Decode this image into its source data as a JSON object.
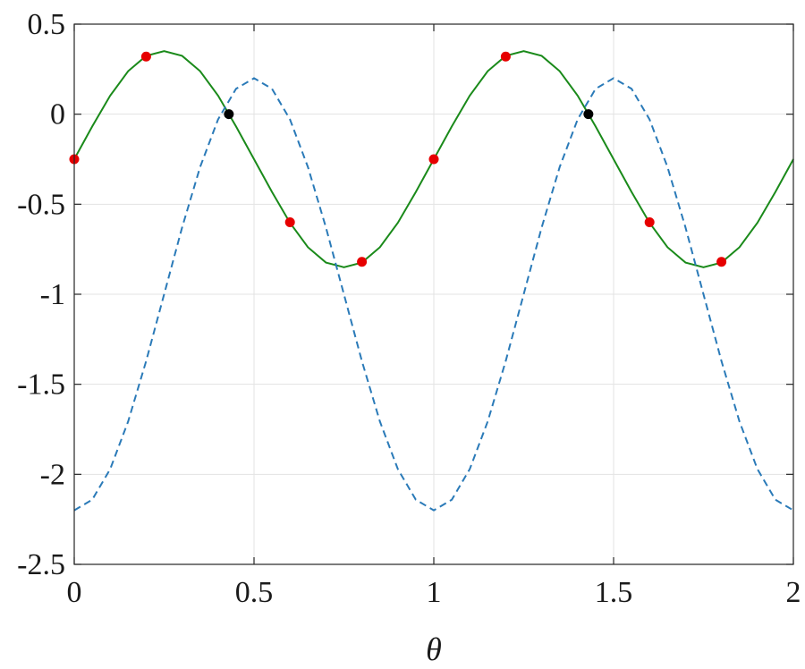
{
  "chart_data": {
    "type": "line",
    "title": "",
    "xlabel": "θ",
    "ylabel": "",
    "xlim": [
      0,
      2
    ],
    "ylim": [
      -2.5,
      0.5
    ],
    "xticks": [
      0,
      0.5,
      1,
      1.5,
      2
    ],
    "xtick_labels": [
      "0",
      "0.5",
      "1",
      "1.5",
      "2"
    ],
    "yticks": [
      0.5,
      0,
      -0.5,
      -1,
      -1.5,
      -2,
      -2.5
    ],
    "ytick_labels": [
      "0.5",
      "0",
      "-0.5",
      "-1",
      "-1.5",
      "-2",
      "-2.5"
    ],
    "grid": true,
    "series": [
      {
        "style": "solid",
        "color": "#1a8a1a",
        "x": [
          0,
          0.05,
          0.1,
          0.15,
          0.2,
          0.25,
          0.3,
          0.35,
          0.4,
          0.45,
          0.5,
          0.55,
          0.6,
          0.65,
          0.7,
          0.75,
          0.8,
          0.85,
          0.9,
          0.95,
          1.0,
          1.05,
          1.1,
          1.15,
          1.2,
          1.25,
          1.3,
          1.35,
          1.4,
          1.45,
          1.5,
          1.55,
          1.6,
          1.65,
          1.7,
          1.75,
          1.8,
          1.85,
          1.9,
          1.95,
          2.0
        ],
        "y": [
          -0.25,
          -0.068,
          0.103,
          0.239,
          0.324,
          0.35,
          0.324,
          0.239,
          0.103,
          -0.068,
          -0.25,
          -0.432,
          -0.603,
          -0.739,
          -0.824,
          -0.85,
          -0.824,
          -0.739,
          -0.603,
          -0.432,
          -0.25,
          -0.068,
          0.103,
          0.239,
          0.324,
          0.35,
          0.324,
          0.239,
          0.103,
          -0.068,
          -0.25,
          -0.432,
          -0.603,
          -0.739,
          -0.824,
          -0.85,
          -0.824,
          -0.739,
          -0.603,
          -0.432,
          -0.25
        ]
      },
      {
        "style": "dashed",
        "color": "#2a7ab8",
        "x": [
          0,
          0.05,
          0.1,
          0.15,
          0.2,
          0.25,
          0.3,
          0.35,
          0.4,
          0.45,
          0.5,
          0.55,
          0.6,
          0.65,
          0.7,
          0.75,
          0.8,
          0.85,
          0.9,
          0.95,
          1.0,
          1.05,
          1.1,
          1.15,
          1.2,
          1.25,
          1.3,
          1.35,
          1.4,
          1.45,
          1.5,
          1.55,
          1.6,
          1.65,
          1.7,
          1.75,
          1.8,
          1.85,
          1.9,
          1.95,
          2.0
        ],
        "y": [
          -2.2,
          -2.141,
          -1.971,
          -1.706,
          -1.371,
          -1.0,
          -0.629,
          -0.294,
          -0.029,
          0.141,
          0.2,
          0.141,
          -0.029,
          -0.294,
          -0.629,
          -1.0,
          -1.371,
          -1.706,
          -1.971,
          -2.141,
          -2.2,
          -2.141,
          -1.971,
          -1.706,
          -1.371,
          -1.0,
          -0.629,
          -0.294,
          -0.029,
          0.141,
          0.2,
          0.141,
          -0.029,
          -0.294,
          -0.629,
          -1.0,
          -1.371,
          -1.706,
          -1.971,
          -2.141,
          -2.2
        ]
      }
    ],
    "markers": [
      {
        "color": "#e60000",
        "points": [
          [
            0,
            -0.25
          ],
          [
            0.2,
            0.32
          ],
          [
            0.6,
            -0.6
          ],
          [
            0.8,
            -0.82
          ],
          [
            1.0,
            -0.25
          ],
          [
            1.2,
            0.32
          ],
          [
            1.6,
            -0.6
          ],
          [
            1.8,
            -0.82
          ]
        ]
      },
      {
        "color": "#000000",
        "points": [
          [
            0.43,
            0.0
          ],
          [
            1.43,
            0.0
          ]
        ]
      }
    ]
  }
}
